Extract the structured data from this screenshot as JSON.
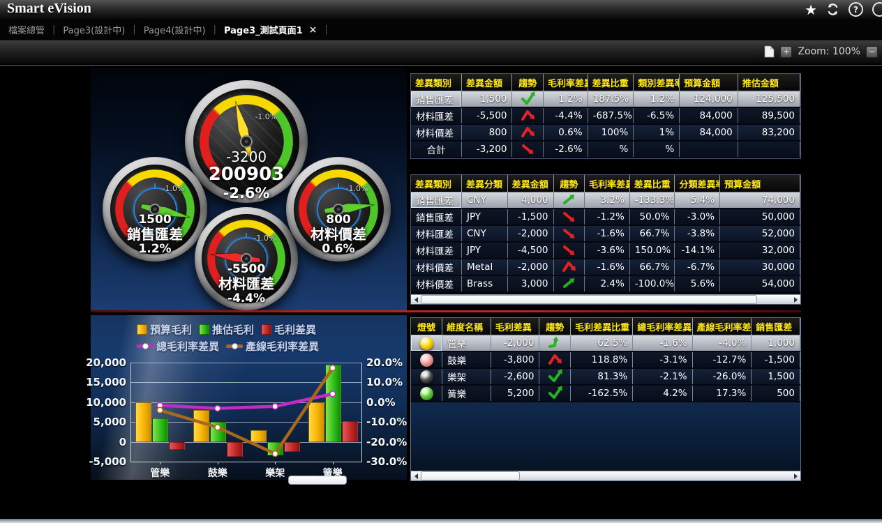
{
  "header": {
    "title": "Smart eVision"
  },
  "tabs": [
    {
      "label": "檔案總管",
      "active": false
    },
    {
      "label": "Page3(設計中)",
      "active": false
    },
    {
      "label": "Page4(設計中)",
      "active": false
    },
    {
      "label": "Page3_測試頁面1",
      "active": true,
      "close": "×"
    }
  ],
  "toolbar": {
    "zoom_in": "+",
    "zoom_out": "−",
    "zoom_label": "Zoom: 100%"
  },
  "gauges": [
    {
      "value": "-3200",
      "label": "200903",
      "pct": "-2.6%",
      "tick_label": "-1.0%",
      "size": "large",
      "needle_color": "#ffdf2b"
    },
    {
      "value": "1500",
      "label": "銷售匯差",
      "pct": "1.2%",
      "tick_label": "-1.0%",
      "size": "small",
      "needle_color": "#5fd12e"
    },
    {
      "value": "-5500",
      "label": "材料匯差",
      "pct": "-4.4%",
      "tick_label": "-1.0%",
      "size": "small",
      "needle_color": "#ee2b2b"
    },
    {
      "value": "800",
      "label": "材料價差",
      "pct": "0.6%",
      "tick_label": "-1.0%",
      "size": "small",
      "needle_color": "#5fd12e"
    }
  ],
  "tables": {
    "category": {
      "headers": [
        "差異類別",
        "差異金額",
        "趨勢",
        "毛利率差異",
        "差異比重",
        "類別差異率",
        "預算金額",
        "推估金額"
      ],
      "rows": [
        {
          "selected": true,
          "cells": [
            "銷售匯差",
            "1,500",
            {
              "trend": "check",
              "color": "green"
            },
            "1.2%",
            "187.5%",
            "1.2%",
            "124,000",
            "125,500"
          ]
        },
        {
          "selected": false,
          "cells": [
            "材料匯差",
            "-5,500",
            {
              "trend": "caret",
              "color": "red"
            },
            "-4.4%",
            "-687.5%",
            "-6.5%",
            "84,000",
            "89,500"
          ]
        },
        {
          "selected": false,
          "cells": [
            "材料價差",
            "800",
            {
              "trend": "caret",
              "color": "red"
            },
            "0.6%",
            "100%",
            "1%",
            "84,000",
            "83,200"
          ]
        },
        {
          "selected": false,
          "cells": [
            "合計",
            "-3,200",
            {
              "trend": "down",
              "color": "red"
            },
            "-2.6%",
            "%",
            "%",
            "",
            ""
          ]
        }
      ]
    },
    "detail": {
      "headers": [
        "差異類別",
        "差異分類",
        "差異金額",
        "趨勢",
        "毛利率差異",
        "差異比重",
        "分類差異率",
        "預算金額"
      ],
      "rows": [
        {
          "selected": true,
          "cells": [
            "銷售匯差",
            "CNY",
            "4,000",
            {
              "trend": "up",
              "color": "green"
            },
            "3.2%",
            "-133.3%",
            "5.4%",
            "74,000"
          ]
        },
        {
          "selected": false,
          "cells": [
            "銷售匯差",
            "JPY",
            "-1,500",
            {
              "trend": "down",
              "color": "red"
            },
            "-1.2%",
            "50.0%",
            "-3.0%",
            "50,000"
          ]
        },
        {
          "selected": false,
          "cells": [
            "材料匯差",
            "CNY",
            "-2,000",
            {
              "trend": "down",
              "color": "red"
            },
            "-1.6%",
            "66.7%",
            "-3.8%",
            "52,000"
          ]
        },
        {
          "selected": false,
          "cells": [
            "材料匯差",
            "JPY",
            "-4,500",
            {
              "trend": "down",
              "color": "red"
            },
            "-3.6%",
            "150.0%",
            "-14.1%",
            "32,000"
          ]
        },
        {
          "selected": false,
          "cells": [
            "材料價差",
            "Metal",
            "-2,000",
            {
              "trend": "caret",
              "color": "red"
            },
            "-1.6%",
            "66.7%",
            "-6.7%",
            "30,000"
          ]
        },
        {
          "selected": false,
          "cells": [
            "材料價差",
            "Brass",
            "3,000",
            {
              "trend": "up",
              "color": "green"
            },
            "2.4%",
            "-100.0%",
            "5.6%",
            "54,000"
          ]
        }
      ]
    },
    "dimension": {
      "headers": [
        "燈號",
        "維度名稱",
        "毛利差異",
        "趨勢",
        "毛利差異比重",
        "總毛利率差異",
        "產線毛利率差!",
        "銷售匯差"
      ],
      "rows": [
        {
          "selected": true,
          "cells": [
            {
              "light": "yellow"
            },
            "管樂",
            "-2,000",
            {
              "trend": "turn",
              "color": "green"
            },
            "62.5%",
            "-1.6%",
            "-4.0%",
            "1,000"
          ]
        },
        {
          "selected": false,
          "cells": [
            {
              "light": "red"
            },
            "鼓樂",
            "-3,800",
            {
              "trend": "caret",
              "color": "red"
            },
            "118.8%",
            "-3.1%",
            "-12.7%",
            "-1,500"
          ]
        },
        {
          "selected": false,
          "cells": [
            {
              "light": "black"
            },
            "樂架",
            "-2,600",
            {
              "trend": "check",
              "color": "green"
            },
            "81.3%",
            "-2.1%",
            "-26.0%",
            "1,500"
          ]
        },
        {
          "selected": false,
          "cells": [
            {
              "light": "green"
            },
            "簧樂",
            "5,200",
            {
              "trend": "check",
              "color": "green"
            },
            "-162.5%",
            "4.2%",
            "17.3%",
            "500"
          ]
        }
      ]
    }
  },
  "light_colors": {
    "yellow": [
      "#fff6c0",
      "#ffd400",
      "#9c7a00"
    ],
    "red": [
      "#ffe4e4",
      "#ef9e9e",
      "#a84848"
    ],
    "black": [
      "#ececec",
      "#4d4d4d",
      "#000000"
    ],
    "green": [
      "#e4ffd2",
      "#63c73c",
      "#1b6b0e"
    ]
  },
  "status_colors": {
    "green": "#25b325",
    "red": "#e62222"
  },
  "chart_data": {
    "type": "combo bar+line",
    "categories": [
      "管樂",
      "鼓樂",
      "樂架",
      "簧樂"
    ],
    "bar_series": [
      {
        "name": "預算毛利",
        "color": "#f7b500",
        "values": [
          10000,
          8000,
          3000,
          10000
        ]
      },
      {
        "name": "推估毛利",
        "color": "#2fbf1a",
        "values": [
          6000,
          5000,
          -3500,
          19500
        ]
      },
      {
        "name": "毛利差異",
        "color": "#c62828",
        "values": [
          -2000,
          -3800,
          -2600,
          5200
        ]
      }
    ],
    "line_series": [
      {
        "name": "總毛利率差異",
        "color": "#c32cc3",
        "values": [
          -1.6,
          -3.1,
          -2.1,
          4.2
        ]
      },
      {
        "name": "產線毛利率差異",
        "color": "#a8671c",
        "values": [
          -4.0,
          -12.7,
          -26.0,
          17.3
        ]
      }
    ],
    "left_axis": {
      "ticks": [
        "20,000",
        "15,000",
        "10,000",
        "5,000",
        "0",
        "-5,000"
      ],
      "min": -5000,
      "max": 20000
    },
    "right_axis": {
      "ticks": [
        "20.0%",
        "10.0%",
        "0.0%",
        "-10.0%",
        "-20.0%",
        "-30.0%"
      ],
      "min": -30,
      "max": 20
    },
    "grid": true,
    "legend_position": "top"
  }
}
